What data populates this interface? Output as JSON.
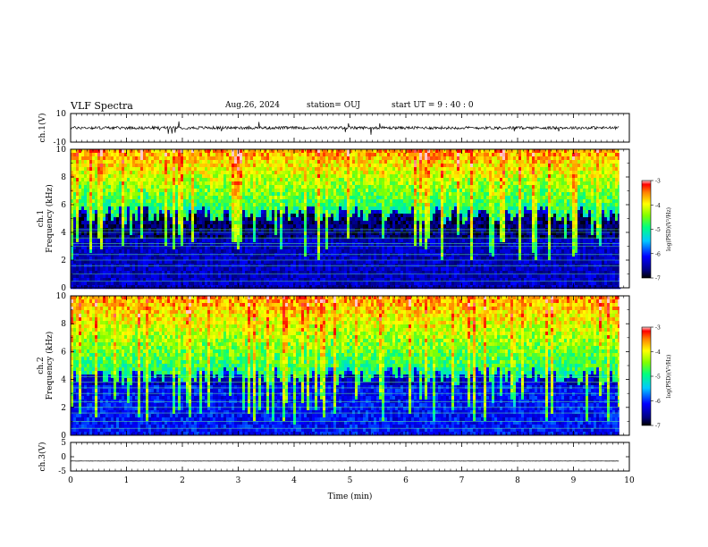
{
  "header": {
    "title": "VLF Spectra",
    "date": "Aug.26, 2024",
    "station": "station= OUJ",
    "start": "start  UT  =   9  : 40 : 0"
  },
  "chart_data": [
    {
      "type": "line",
      "name": "ch1-waveform",
      "ylabel": "ch.1(V)",
      "ylim": [
        -10,
        10
      ],
      "yticks": [
        "10",
        "-10"
      ],
      "xlim": [
        0,
        10
      ],
      "mean_level": 0,
      "line_color": "#000000"
    },
    {
      "type": "heatmap",
      "name": "ch1-spectrogram",
      "ylabel": "ch.1\nFrequency (kHz)",
      "ylim": [
        0,
        10
      ],
      "yticks": [
        "0",
        "2",
        "4",
        "6",
        "8",
        "10"
      ],
      "xlim": [
        0,
        10
      ],
      "data_end_x": 9.82,
      "colorbar": {
        "label": "log(PSD)(V²/Hz)",
        "range": [
          -7,
          -3
        ],
        "ticks": [
          "-3",
          "-4",
          "-5",
          "-6",
          "-7"
        ]
      },
      "features": {
        "quiet_band_kHz": [
          0,
          5.5
        ],
        "active_band_kHz": [
          6,
          10
        ],
        "horizontal_lines_kHz": [
          0.5,
          1.0,
          1.6,
          2.0,
          2.4,
          3.0,
          3.2,
          3.6,
          4.0,
          4.2
        ]
      }
    },
    {
      "type": "heatmap",
      "name": "ch2-spectrogram",
      "ylabel": "ch.2\nFrequency (kHz)",
      "ylim": [
        0,
        10
      ],
      "yticks": [
        "0",
        "2",
        "4",
        "6",
        "8",
        "10"
      ],
      "xlim": [
        0,
        10
      ],
      "data_end_x": 9.82,
      "colorbar": {
        "label": "log(PSD)(V²/Hz)",
        "range": [
          -7,
          -3
        ],
        "ticks": [
          "-3",
          "-4",
          "-5",
          "-6",
          "-7"
        ]
      },
      "features": {
        "quiet_band_kHz": [
          0,
          4.5
        ],
        "active_band_kHz": [
          5,
          10
        ],
        "horizontal_lines_kHz": [
          0.5,
          1.0,
          1.6,
          2.0,
          2.4,
          3.0,
          3.4,
          3.8,
          4.2
        ]
      }
    },
    {
      "type": "line",
      "name": "ch3-waveform",
      "ylabel": "ch.3(V)",
      "ylim": [
        -5,
        5
      ],
      "yticks": [
        "5",
        "0",
        "-5"
      ],
      "xlim": [
        0,
        10
      ],
      "mean_level": -1.5,
      "line_color": "#000000"
    }
  ],
  "x_axis": {
    "label": "Time  (min)",
    "range": [
      0,
      10
    ],
    "ticks": [
      "0",
      "1",
      "2",
      "3",
      "4",
      "5",
      "6",
      "7",
      "8",
      "9",
      "10"
    ]
  }
}
